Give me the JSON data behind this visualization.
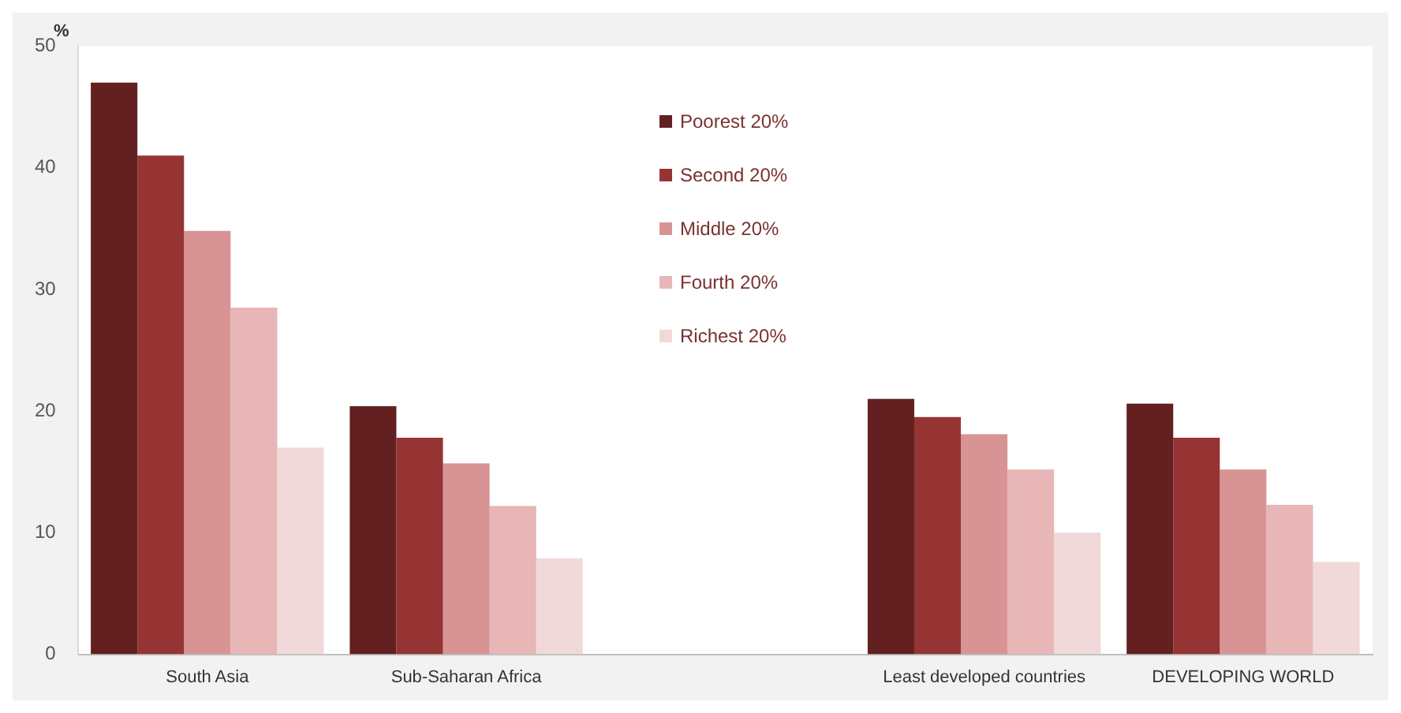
{
  "chart_data": {
    "type": "bar",
    "ylabel": "%",
    "categories": [
      "South Asia",
      "Sub-Saharan Africa",
      null,
      "Least developed countries",
      "DEVELOPING WORLD"
    ],
    "series": [
      {
        "name": "Poorest 20%",
        "color": "#632020",
        "values": [
          47,
          20.4,
          null,
          21,
          20.6
        ]
      },
      {
        "name": "Second 20%",
        "color": "#963434",
        "values": [
          41,
          17.8,
          null,
          19.5,
          17.8
        ]
      },
      {
        "name": "Middle 20%",
        "color": "#d89494",
        "values": [
          34.8,
          15.7,
          null,
          18.1,
          15.2
        ]
      },
      {
        "name": "Fourth 20%",
        "color": "#e8b6b6",
        "values": [
          28.5,
          12.2,
          null,
          15.2,
          12.3
        ]
      },
      {
        "name": "Richest 20%",
        "color": "#f1d9d9",
        "values": [
          17,
          7.9,
          null,
          10,
          7.6
        ]
      }
    ],
    "ylim": [
      0,
      50
    ],
    "yticks": [
      0,
      10,
      20,
      30,
      40,
      50
    ],
    "grid": false,
    "legend": "top"
  }
}
